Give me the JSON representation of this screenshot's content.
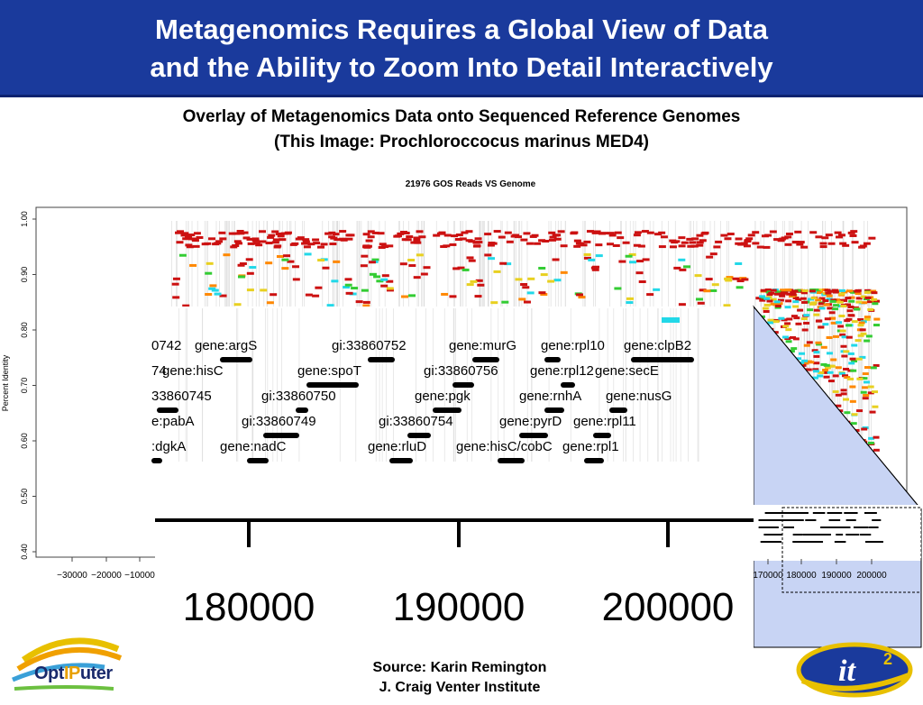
{
  "title": {
    "line1": "Metagenomics Requires a Global View of Data",
    "line2": "and the Ability to Zoom Into Detail Interactively"
  },
  "subtitle": {
    "line1": "Overlay of Metagenomics Data onto Sequenced Reference Genomes",
    "line2": "(This Image: Prochloroccocus marinus MED4)"
  },
  "chart_data": {
    "type": "scatter",
    "title": "21976 GOS Reads VS Genome",
    "ylabel": "Percent Identity",
    "ylim": [
      0.4,
      1.0
    ],
    "y_ticks": [
      "0.40",
      "0.50",
      "0.60",
      "0.70",
      "0.80",
      "0.90",
      "1.00"
    ],
    "x_ticks_left": [
      "−30000",
      "−20000",
      "−10000"
    ],
    "x_ticks_right": [
      "170000",
      "180000",
      "190000",
      "200000"
    ],
    "zoom_axis_ticks": [
      "180000",
      "190000",
      "200000"
    ]
  },
  "gene_labels": [
    "0742",
    "gene:argS",
    "gi:33860752",
    "gene:murG",
    "gene:rpl10",
    "gene:clpB2",
    "74",
    "gene:hisC",
    "gene:spoT",
    "gi:33860756",
    "gene:rpl12",
    "gene:secE",
    "33860745",
    "gi:33860750",
    "gene:pgk",
    "gene:rnhA",
    "gene:nusG",
    "e:pabA",
    "gi:33860749",
    "gi:33860754",
    "gene:pyrD",
    "gene:rpl11",
    ":dgkA",
    "gene:nadC",
    "gene:rluD",
    "gene:hisC/cobC",
    "gene:rpl1"
  ],
  "source": {
    "line1": "Source: Karin Remington",
    "line2": "J. Craig Venter Institute"
  },
  "logos": {
    "left_text_a": "Opt",
    "left_text_b": "IP",
    "left_text_c": "uter",
    "right_text": "it"
  },
  "colors": {
    "title_bg": "#1a3a9c",
    "zoom_fill": "#c8d4f4",
    "read_red": "#cc1111",
    "read_green": "#33cc33",
    "read_cyan": "#22d8e8",
    "read_yellow": "#e8d020"
  }
}
